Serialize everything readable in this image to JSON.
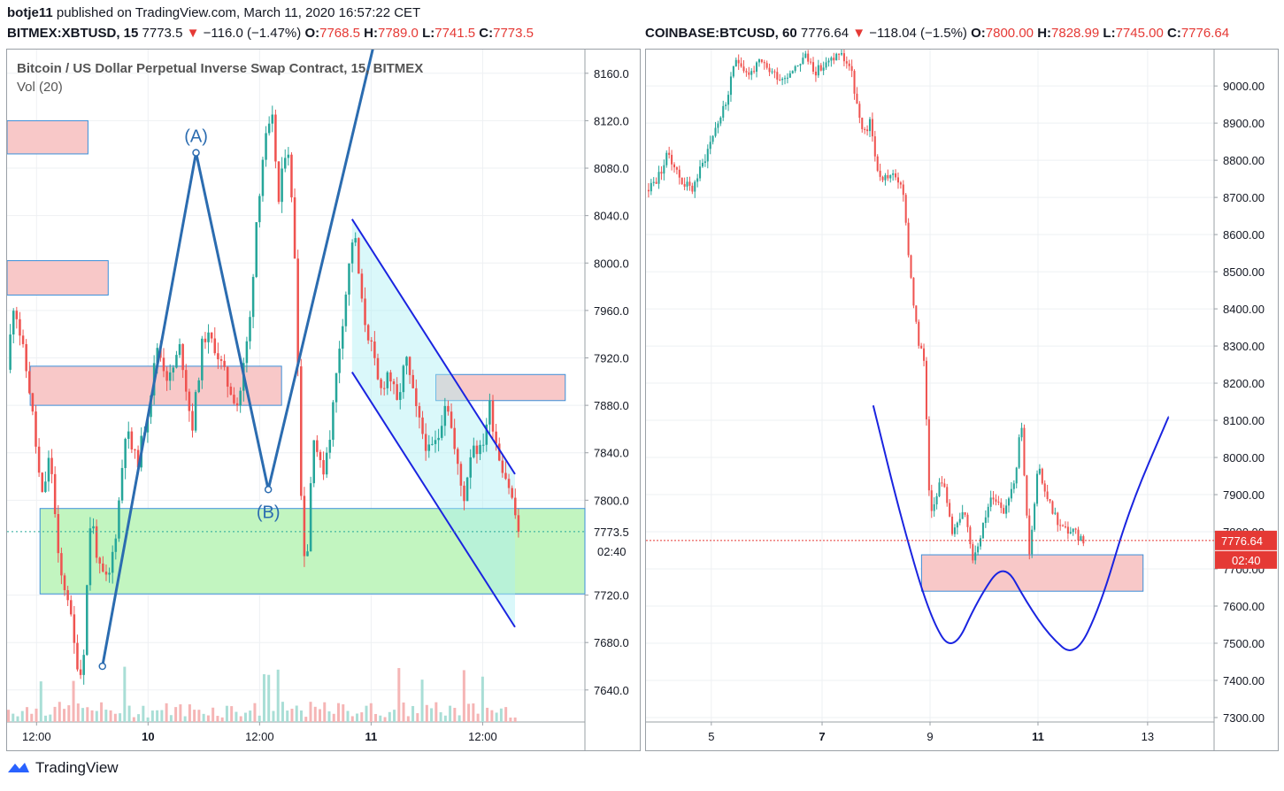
{
  "publish_line": {
    "author": "botje11",
    "text": " published on TradingView.com, March 11, 2020 16:57:22 CET"
  },
  "brand": {
    "name": "TradingView",
    "logo_icon": "tradingview-logo-icon"
  },
  "colors": {
    "up": "#26a69a",
    "down": "#ef5350",
    "resistance_fill": "#f8c8c8",
    "support_fill": "#c2f5c0",
    "line_blue": "#2b6cb0",
    "channel_blue": "#1a24e0",
    "price_label": "#e53935"
  },
  "chart_data": [
    {
      "type": "candlestick",
      "symbol": "BITMEX:XBTUSD, 15",
      "last": "7773.5",
      "change": "−116.0 (−1.47%)",
      "change_arrow": "▼",
      "ohlc": {
        "O": "7768.5",
        "H": "7789.0",
        "L": "7741.5",
        "C": "7773.5"
      },
      "title": "Bitcoin / US Dollar Perpetual Inverse Swap Contract, 15, BITMEX",
      "volume_label": "Vol (20)",
      "y_ticks": [
        "8160.0",
        "8120.0",
        "8080.0",
        "8040.0",
        "8000.0",
        "7960.0",
        "7920.0",
        "7880.0",
        "7840.0",
        "7800.0",
        "7720.0",
        "7680.0",
        "7640.0"
      ],
      "y_tick_values": [
        8160,
        8120,
        8080,
        8040,
        8000,
        7960,
        7920,
        7880,
        7840,
        7800,
        7720,
        7680,
        7640
      ],
      "ylim": [
        7613,
        8180
      ],
      "x_ticks": [
        "12:00",
        "10",
        "12:00",
        "11",
        "12:00"
      ],
      "x_tick_positions": [
        0.051,
        0.244,
        0.437,
        0.63,
        0.823
      ],
      "price_label": "7773.5",
      "countdown": "02:40",
      "annotations": {
        "A": "(A)",
        "B": "(B)"
      },
      "path_points": [
        [
          0.165,
          7660
        ],
        [
          0.327,
          8093
        ],
        [
          0.452,
          7809
        ],
        [
          0.64,
          8195
        ]
      ],
      "channel_upper": [
        [
          0.597,
          8037
        ],
        [
          0.879,
          7822
        ]
      ],
      "channel_lower": [
        [
          0.597,
          7908
        ],
        [
          0.879,
          7693
        ]
      ],
      "resistance_zones": [
        [
          0.0,
          0.14,
          8120,
          8092
        ],
        [
          0.0,
          0.175,
          8002,
          7973
        ],
        [
          0.04,
          0.475,
          7913,
          7880
        ],
        [
          0.742,
          0.966,
          7906,
          7884
        ]
      ],
      "support_zone": [
        0.057,
        1.0,
        7793,
        7721
      ],
      "price_path": [
        [
          0.0,
          7910
        ],
        [
          0.012,
          7970
        ],
        [
          0.04,
          7890
        ],
        [
          0.06,
          7800
        ],
        [
          0.075,
          7840
        ],
        [
          0.09,
          7740
        ],
        [
          0.105,
          7720
        ],
        [
          0.118,
          7670
        ],
        [
          0.13,
          7650
        ],
        [
          0.145,
          7790
        ],
        [
          0.16,
          7740
        ],
        [
          0.175,
          7730
        ],
        [
          0.19,
          7780
        ],
        [
          0.205,
          7860
        ],
        [
          0.225,
          7830
        ],
        [
          0.245,
          7880
        ],
        [
          0.26,
          7930
        ],
        [
          0.28,
          7900
        ],
        [
          0.3,
          7930
        ],
        [
          0.32,
          7860
        ],
        [
          0.34,
          7940
        ],
        [
          0.36,
          7930
        ],
        [
          0.38,
          7900
        ],
        [
          0.4,
          7880
        ],
        [
          0.42,
          7950
        ],
        [
          0.432,
          8040
        ],
        [
          0.445,
          8100
        ],
        [
          0.46,
          8120
        ],
        [
          0.47,
          8050
        ],
        [
          0.485,
          8110
        ],
        [
          0.5,
          7990
        ],
        [
          0.51,
          7780
        ],
        [
          0.518,
          7740
        ],
        [
          0.53,
          7860
        ],
        [
          0.545,
          7820
        ],
        [
          0.56,
          7860
        ],
        [
          0.575,
          7930
        ],
        [
          0.59,
          7990
        ],
        [
          0.6,
          8030
        ],
        [
          0.615,
          7960
        ],
        [
          0.63,
          7930
        ],
        [
          0.645,
          7890
        ],
        [
          0.66,
          7910
        ],
        [
          0.675,
          7880
        ],
        [
          0.69,
          7920
        ],
        [
          0.71,
          7870
        ],
        [
          0.73,
          7840
        ],
        [
          0.745,
          7850
        ],
        [
          0.76,
          7890
        ],
        [
          0.775,
          7840
        ],
        [
          0.79,
          7800
        ],
        [
          0.805,
          7850
        ],
        [
          0.82,
          7840
        ],
        [
          0.835,
          7880
        ],
        [
          0.85,
          7840
        ],
        [
          0.87,
          7810
        ],
        [
          0.885,
          7774
        ]
      ],
      "volume_bars": 110
    },
    {
      "type": "candlestick",
      "symbol": "COINBASE:BTCUSD, 60",
      "last": "7776.64",
      "change": "−118.04 (−1.5%)",
      "change_arrow": "▼",
      "ohlc": {
        "O": "7800.00",
        "H": "7828.99",
        "L": "7745.00",
        "C": "7776.64"
      },
      "y_ticks": [
        "9000.00",
        "8900.00",
        "8800.00",
        "8700.00",
        "8600.00",
        "8500.00",
        "8400.00",
        "8300.00",
        "8200.00",
        "8100.00",
        "8000.00",
        "7900.00",
        "7800.00",
        "7700.00",
        "7600.00",
        "7500.00",
        "7400.00",
        "7300.00"
      ],
      "y_tick_values": [
        9000,
        8900,
        8800,
        8700,
        8600,
        8500,
        8400,
        8300,
        8200,
        8100,
        8000,
        7900,
        7800,
        7700,
        7600,
        7500,
        7400,
        7300
      ],
      "ylim": [
        7288,
        9098
      ],
      "x_ticks": [
        "5",
        "7",
        "9",
        "11",
        "13"
      ],
      "x_tick_positions": [
        0.115,
        0.31,
        0.5,
        0.69,
        0.883
      ],
      "price_label": "7776.64",
      "countdown": "02:40",
      "resistance_zone": [
        0.485,
        0.875,
        7738,
        7640
      ],
      "pattern_curve": [
        [
          0.4,
          8140
        ],
        [
          0.45,
          7830
        ],
        [
          0.5,
          7570
        ],
        [
          0.54,
          7470
        ],
        [
          0.585,
          7620
        ],
        [
          0.63,
          7720
        ],
        [
          0.67,
          7610
        ],
        [
          0.71,
          7520
        ],
        [
          0.755,
          7460
        ],
        [
          0.8,
          7600
        ],
        [
          0.85,
          7860
        ],
        [
          0.92,
          8110
        ]
      ],
      "price_path": [
        [
          0.0,
          8720
        ],
        [
          0.02,
          8750
        ],
        [
          0.04,
          8820
        ],
        [
          0.06,
          8750
        ],
        [
          0.08,
          8720
        ],
        [
          0.1,
          8790
        ],
        [
          0.12,
          8880
        ],
        [
          0.14,
          8950
        ],
        [
          0.16,
          9080
        ],
        [
          0.18,
          9030
        ],
        [
          0.2,
          9060
        ],
        [
          0.22,
          9040
        ],
        [
          0.24,
          9020
        ],
        [
          0.26,
          9050
        ],
        [
          0.28,
          9080
        ],
        [
          0.3,
          9040
        ],
        [
          0.32,
          9060
        ],
        [
          0.34,
          9090
        ],
        [
          0.36,
          9050
        ],
        [
          0.38,
          8870
        ],
        [
          0.395,
          8900
        ],
        [
          0.41,
          8750
        ],
        [
          0.43,
          8760
        ],
        [
          0.45,
          8740
        ],
        [
          0.47,
          8430
        ],
        [
          0.48,
          8300
        ],
        [
          0.49,
          8260
        ],
        [
          0.5,
          7850
        ],
        [
          0.52,
          7950
        ],
        [
          0.54,
          7800
        ],
        [
          0.56,
          7850
        ],
        [
          0.575,
          7730
        ],
        [
          0.59,
          7800
        ],
        [
          0.61,
          7900
        ],
        [
          0.63,
          7860
        ],
        [
          0.65,
          7950
        ],
        [
          0.66,
          8110
        ],
        [
          0.675,
          7730
        ],
        [
          0.69,
          7970
        ],
        [
          0.71,
          7880
        ],
        [
          0.73,
          7810
        ],
        [
          0.75,
          7800
        ],
        [
          0.77,
          7776
        ]
      ]
    }
  ]
}
